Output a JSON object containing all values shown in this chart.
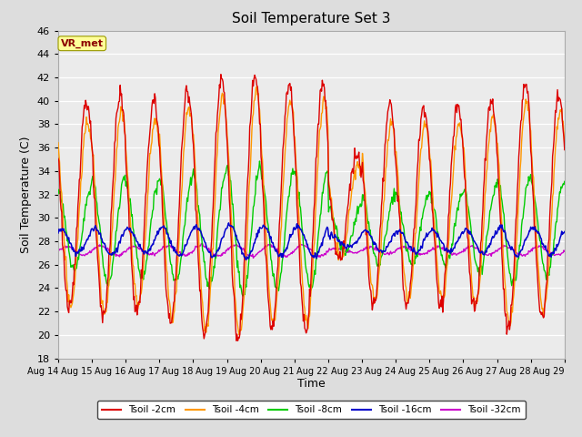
{
  "title": "Soil Temperature Set 3",
  "xlabel": "Time",
  "ylabel": "Soil Temperature (C)",
  "ylim": [
    18,
    46
  ],
  "yticks": [
    18,
    20,
    22,
    24,
    26,
    28,
    30,
    32,
    34,
    36,
    38,
    40,
    42,
    44,
    46
  ],
  "x_labels": [
    "Aug 14",
    "Aug 15",
    "Aug 16",
    "Aug 17",
    "Aug 18",
    "Aug 19",
    "Aug 20",
    "Aug 21",
    "Aug 22",
    "Aug 23",
    "Aug 24",
    "Aug 25",
    "Aug 26",
    "Aug 27",
    "Aug 28",
    "Aug 29"
  ],
  "colors": {
    "tsoil_2cm": "#dd0000",
    "tsoil_4cm": "#ff9900",
    "tsoil_8cm": "#00cc00",
    "tsoil_16cm": "#0000cc",
    "tsoil_32cm": "#cc00cc"
  },
  "legend_labels": [
    "Tsoil -2cm",
    "Tsoil -4cm",
    "Tsoil -8cm",
    "Tsoil -16cm",
    "Tsoil -32cm"
  ],
  "annotation_text": "VR_met",
  "annotation_fg": "#8b0000",
  "annotation_bg": "#ffff99",
  "annotation_edge": "#999900",
  "background_color": "#dddddd",
  "plot_bg_color": "#ebebeb",
  "grid_color": "#ffffff",
  "title_fontsize": 11,
  "label_fontsize": 9,
  "tick_fontsize": 8,
  "linewidth": 1.0
}
